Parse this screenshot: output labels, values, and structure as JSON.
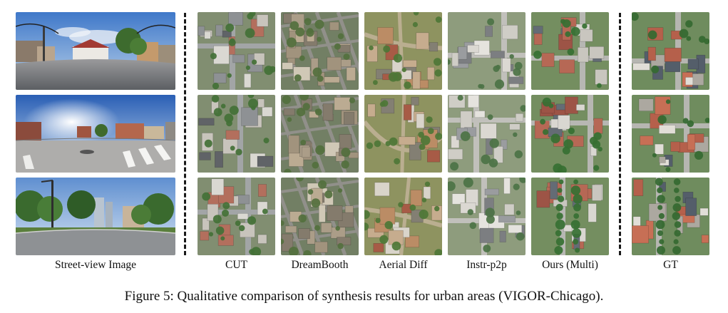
{
  "figure": {
    "caption": "Figure 5: Qualitative comparison of synthesis results for urban areas (VIGOR-Chicago).",
    "columns": [
      {
        "key": "street",
        "label": "Street-view Image"
      },
      {
        "key": "cut",
        "label": "CUT"
      },
      {
        "key": "dreambooth",
        "label": "DreamBooth"
      },
      {
        "key": "aerialdiff",
        "label": "Aerial Diff"
      },
      {
        "key": "instrp2p",
        "label": "Instr-p2p"
      },
      {
        "key": "ours",
        "label": "Ours (Multi)"
      },
      {
        "key": "gt",
        "label": "GT"
      }
    ],
    "rows": 3
  },
  "palette": {
    "sky": "#6f9fd6",
    "road": "#8f9397",
    "grass": "#4f7a3a",
    "tree": "#2f5a2a",
    "roof_light": "#d7d5cf",
    "roof_red": "#a4574a",
    "separator": "#1a1a1a"
  }
}
